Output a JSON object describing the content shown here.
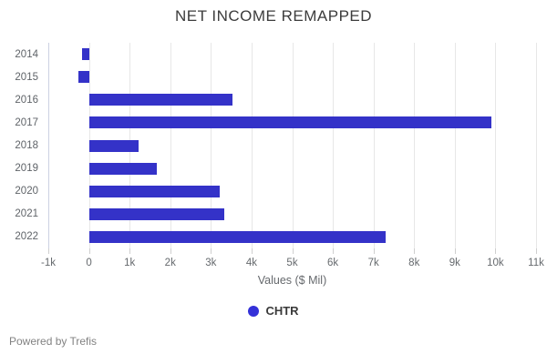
{
  "title": "NET INCOME REMAPPED",
  "chart_data": {
    "type": "bar",
    "orientation": "horizontal",
    "title": "NET INCOME REMAPPED",
    "categories": [
      "2014",
      "2015",
      "2016",
      "2017",
      "2018",
      "2019",
      "2020",
      "2021",
      "2022"
    ],
    "series": [
      {
        "name": "CHTR",
        "values": [
          -180,
          -270,
          3520,
          9900,
          1230,
          1660,
          3220,
          3330,
          7300
        ]
      }
    ],
    "xlabel": "Values ($ Mil)",
    "ylabel": "",
    "xlim": [
      -1000,
      11000
    ],
    "xticks": [
      -1000,
      0,
      1000,
      2000,
      3000,
      4000,
      5000,
      6000,
      7000,
      8000,
      9000,
      10000,
      11000
    ],
    "xtick_labels": [
      "-1k",
      "0",
      "1k",
      "2k",
      "3k",
      "4k",
      "5k",
      "6k",
      "7k",
      "8k",
      "9k",
      "10k",
      "11k"
    ],
    "grid": "vertical",
    "legend_position": "bottom"
  },
  "legend": {
    "label": "CHTR"
  },
  "footer": {
    "text": "Powered by Trefis"
  },
  "colors": {
    "bar": "#3432c8",
    "legend_dot": "#3431d8",
    "gridline": "#e7e7e7",
    "axis_line": "#ccd1e2",
    "title_text": "#3c3c3c",
    "tick_text": "#666a6e",
    "background": "#ffffff"
  }
}
